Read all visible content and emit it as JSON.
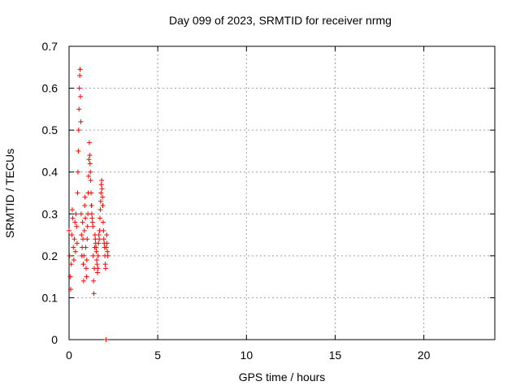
{
  "chart_data": {
    "type": "scatter",
    "title": "Day 099 of 2023, SRMTID for receiver nrmg",
    "xlabel": "GPS time / hours",
    "ylabel": "SRMTID / TECUs",
    "xlim": [
      0,
      24
    ],
    "ylim": [
      0,
      0.7
    ],
    "xticks": [
      "0",
      "5",
      "10",
      "15",
      "20"
    ],
    "yticks": [
      "0",
      "0.1",
      "0.2",
      "0.3",
      "0.4",
      "0.5",
      "0.6",
      "0.7"
    ],
    "grid": true,
    "marker": "+",
    "color": "#ff0000",
    "series": [
      {
        "name": "SRMTID",
        "x": [
          0.0,
          0.03,
          0.06,
          0.09,
          0.12,
          0.15,
          0.18,
          0.21,
          0.24,
          0.27,
          0.3,
          0.33,
          0.36,
          0.39,
          0.42,
          0.45,
          0.48,
          0.5,
          0.52,
          0.54,
          0.56,
          0.58,
          0.6,
          0.62,
          0.64,
          0.66,
          0.68,
          0.7,
          0.72,
          0.74,
          0.76,
          0.78,
          0.8,
          0.82,
          0.84,
          0.86,
          0.88,
          0.9,
          0.92,
          0.94,
          0.96,
          0.98,
          1.0,
          1.02,
          1.04,
          1.06,
          1.08,
          1.1,
          1.12,
          1.14,
          1.16,
          1.18,
          1.2,
          1.22,
          1.24,
          1.26,
          1.28,
          1.3,
          1.32,
          1.34,
          1.36,
          1.38,
          1.4,
          1.42,
          1.44,
          1.46,
          1.48,
          1.5,
          1.52,
          1.54,
          1.56,
          1.58,
          1.6,
          1.62,
          1.64,
          1.66,
          1.68,
          1.7,
          1.72,
          1.74,
          1.76,
          1.78,
          1.8,
          1.82,
          1.84,
          1.86,
          1.88,
          1.9,
          1.92,
          1.94,
          1.96,
          1.98,
          2.0,
          2.02,
          2.04,
          2.06,
          2.08,
          2.1,
          2.12,
          2.14,
          2.16,
          2.18
        ],
        "y": [
          0.26,
          0.2,
          0.15,
          0.12,
          0.18,
          0.25,
          0.31,
          0.29,
          0.22,
          0.19,
          0.24,
          0.28,
          0.21,
          0.3,
          0.27,
          0.23,
          0.35,
          0.4,
          0.45,
          0.5,
          0.55,
          0.6,
          0.63,
          0.645,
          0.58,
          0.52,
          0.3,
          0.25,
          0.2,
          0.22,
          0.28,
          0.24,
          0.18,
          0.14,
          0.2,
          0.26,
          0.32,
          0.34,
          0.29,
          0.22,
          0.17,
          0.15,
          0.19,
          0.24,
          0.27,
          0.3,
          0.35,
          0.39,
          0.43,
          0.47,
          0.44,
          0.42,
          0.4,
          0.38,
          0.35,
          0.32,
          0.3,
          0.29,
          0.28,
          0.27,
          0.2,
          0.14,
          0.11,
          0.17,
          0.22,
          0.25,
          0.24,
          0.23,
          0.22,
          0.21,
          0.19,
          0.18,
          0.16,
          0.17,
          0.2,
          0.23,
          0.25,
          0.24,
          0.26,
          0.29,
          0.31,
          0.33,
          0.35,
          0.37,
          0.38,
          0.36,
          0.34,
          0.32,
          0.28,
          0.26,
          0.24,
          0.23,
          0.22,
          0.2,
          0.18,
          0.17,
          0.0,
          0.22,
          0.25,
          0.23,
          0.21,
          0.2
        ]
      }
    ]
  }
}
